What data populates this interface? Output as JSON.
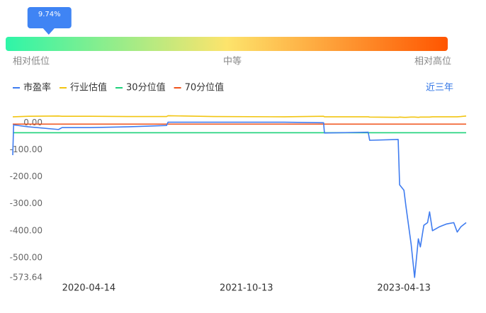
{
  "chart_data": [
    {
      "type": "gauge",
      "value": 9.74,
      "value_label": "9.74%",
      "range": [
        0,
        100
      ],
      "labels": [
        "相对低位",
        "中等",
        "相对高位"
      ],
      "colors": [
        "#2ef5a8",
        "#fde46c",
        "#ff5500"
      ],
      "marker_color": "#3f84f4"
    },
    {
      "type": "line",
      "range_label": "近三年",
      "x": [
        "2019-07-25",
        "2019-07-28",
        "2019-09-17",
        "2019-12-31",
        "2020-01-12",
        "2020-04-14",
        "2020-08-28",
        "2021-01-09",
        "2021-01-14",
        "2021-06-21",
        "2022-02-22",
        "2022-07-08",
        "2022-07-11",
        "2022-12-10",
        "2022-12-15",
        "2023-03-24",
        "2023-03-29",
        "2023-04-13",
        "2023-04-20",
        "2023-05-08",
        "2023-05-20",
        "2023-06-02",
        "2023-06-09",
        "2023-06-21",
        "2023-07-04",
        "2023-07-11",
        "2023-07-21",
        "2023-08-15",
        "2023-09-08",
        "2023-10-03",
        "2023-10-15",
        "2023-10-28",
        "2023-11-15"
      ],
      "xlim": [
        "2019-07-25",
        "2023-11-15"
      ],
      "xticks": [
        "2020-04-14",
        "2021-10-13",
        "2023-04-13"
      ],
      "ylim": [
        -573.64,
        35
      ],
      "yticks": [
        {
          "value": 0,
          "label": "0.00"
        },
        {
          "value": -100,
          "label": "-100.00"
        },
        {
          "value": -200,
          "label": "-200.00"
        },
        {
          "value": -300,
          "label": "-300.00"
        },
        {
          "value": -400,
          "label": "-400.00"
        },
        {
          "value": -500,
          "label": "-500.00"
        },
        {
          "value": -573.64,
          "label": "-573.64"
        }
      ],
      "grid": false,
      "series": [
        {
          "name": "市盈率",
          "color": "#3f7cf0",
          "values": [
            -120,
            -8,
            -15,
            -25,
            -18,
            -18,
            -15,
            -10,
            2,
            2,
            2,
            0,
            -38,
            -35,
            -65,
            -62,
            -230,
            -250,
            -310,
            -450,
            -573,
            -430,
            -460,
            -380,
            -370,
            -330,
            -400,
            -385,
            -375,
            -370,
            -405,
            -385,
            -370
          ]
        },
        {
          "name": "行业估值",
          "color": "#f2c511",
          "values": [
            22,
            22,
            24,
            25,
            24,
            24,
            23,
            23,
            26,
            23,
            22,
            24,
            22,
            22,
            21,
            20,
            21,
            20,
            20,
            21,
            21,
            20,
            21,
            21,
            21,
            21,
            22,
            22,
            22,
            22,
            22,
            23,
            25
          ]
        },
        {
          "name": "30分位值",
          "color": "#1ed17a",
          "values": [
            -37,
            -37,
            -37,
            -37,
            -37,
            -37,
            -37,
            -37,
            -37,
            -37,
            -37,
            -37,
            -37,
            -37,
            -37,
            -37,
            -37,
            -37,
            -37,
            -37,
            -37,
            -37,
            -37,
            -37,
            -37,
            -37,
            -37,
            -37,
            -37,
            -37,
            -37,
            -37,
            -37
          ]
        },
        {
          "name": "70分位值",
          "color": "#f0531c",
          "values": [
            -5,
            -5,
            -5,
            -5,
            -5,
            -5,
            -5,
            -5,
            -5,
            -5,
            -5,
            -5,
            -5,
            -5,
            -5,
            -5,
            -5,
            -5,
            -5,
            -5,
            -5,
            -5,
            -5,
            -5,
            -5,
            -5,
            -5,
            -5,
            -5,
            -5,
            -5,
            -5,
            -5
          ]
        }
      ]
    }
  ]
}
